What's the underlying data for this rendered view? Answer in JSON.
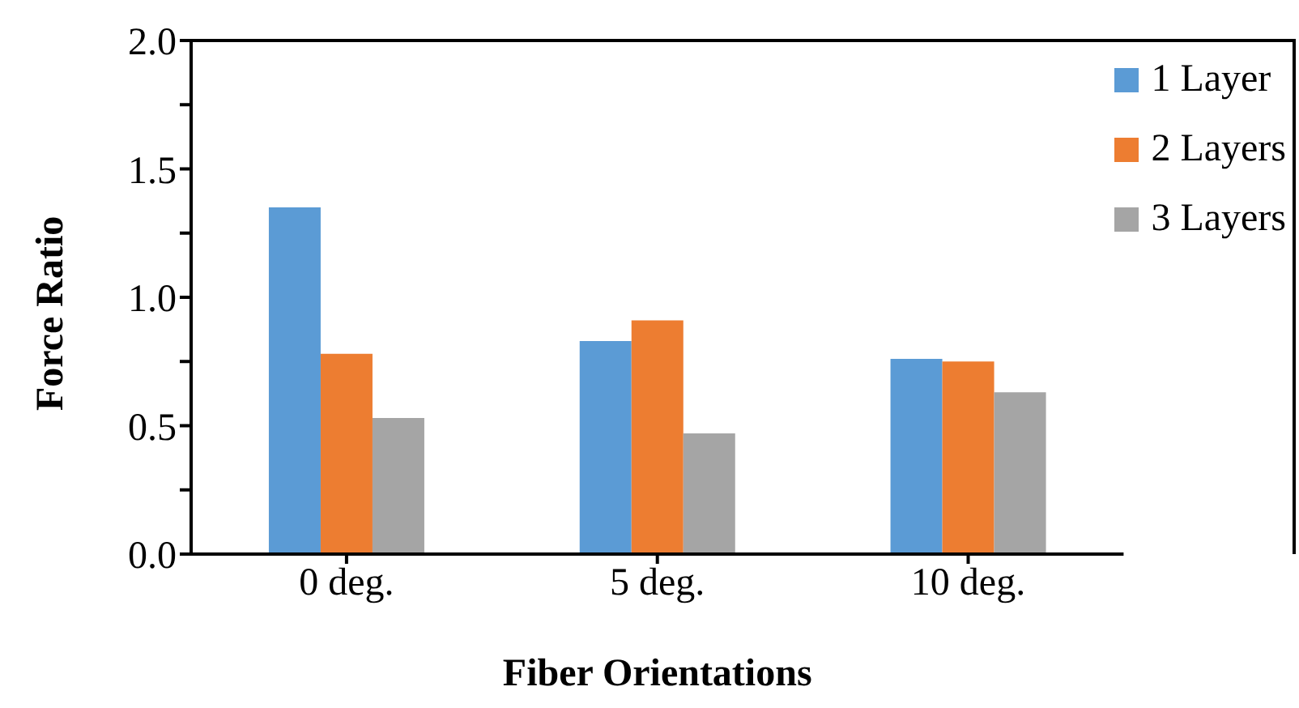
{
  "chart_data": {
    "type": "bar",
    "xlabel": "Fiber Orientations",
    "ylabel": "Force Ratio",
    "categories": [
      "0 deg.",
      "5 deg.",
      "10 deg."
    ],
    "series": [
      {
        "name": "1 Layer",
        "color": "#5b9bd5",
        "values": [
          1.35,
          0.83,
          0.76
        ]
      },
      {
        "name": "2 Layers",
        "color": "#ed7d31",
        "values": [
          0.78,
          0.91,
          0.75
        ]
      },
      {
        "name": "3 Layers",
        "color": "#a5a5a5",
        "values": [
          0.53,
          0.47,
          0.63
        ]
      }
    ],
    "ylim": [
      0,
      2
    ],
    "yticks": [
      {
        "value": 0,
        "label": "0.0"
      },
      {
        "value": 0.25,
        "label": null
      },
      {
        "value": 0.5,
        "label": "0.5"
      },
      {
        "value": 0.75,
        "label": null
      },
      {
        "value": 1,
        "label": "1.0"
      },
      {
        "value": 1.25,
        "label": null
      },
      {
        "value": 1.5,
        "label": "1.5"
      },
      {
        "value": 1.75,
        "label": null
      },
      {
        "value": 2,
        "label": "2.0"
      }
    ],
    "legend": "top right"
  }
}
